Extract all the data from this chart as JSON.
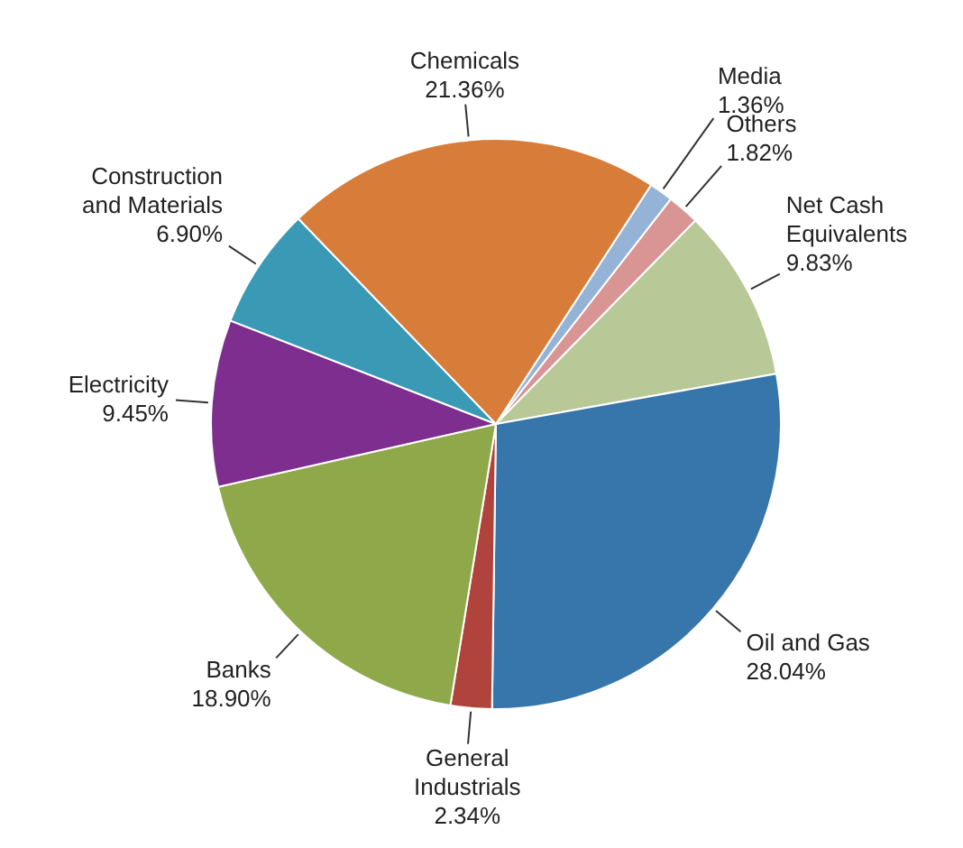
{
  "chart_data": {
    "type": "pie",
    "categories": [
      "Media",
      "Others",
      "Net Cash Equivalents",
      "Oil and Gas",
      "General Industrials",
      "Banks",
      "Electricity",
      "Construction and Materials",
      "Chemicals"
    ],
    "values": [
      1.36,
      1.82,
      9.83,
      28.04,
      2.34,
      18.9,
      9.45,
      6.9,
      21.36
    ],
    "value_labels": [
      "1.36%",
      "1.82%",
      "9.83%",
      "28.04%",
      "2.34%",
      "18.90%",
      "9.45%",
      "6.90%",
      "21.36%"
    ],
    "colors": [
      "#95b3d7",
      "#d99594",
      "#b8c897",
      "#3776aa",
      "#b0443c",
      "#8fa84a",
      "#7d2e8e",
      "#3a9ab5",
      "#d87c3a"
    ],
    "legend": false
  }
}
